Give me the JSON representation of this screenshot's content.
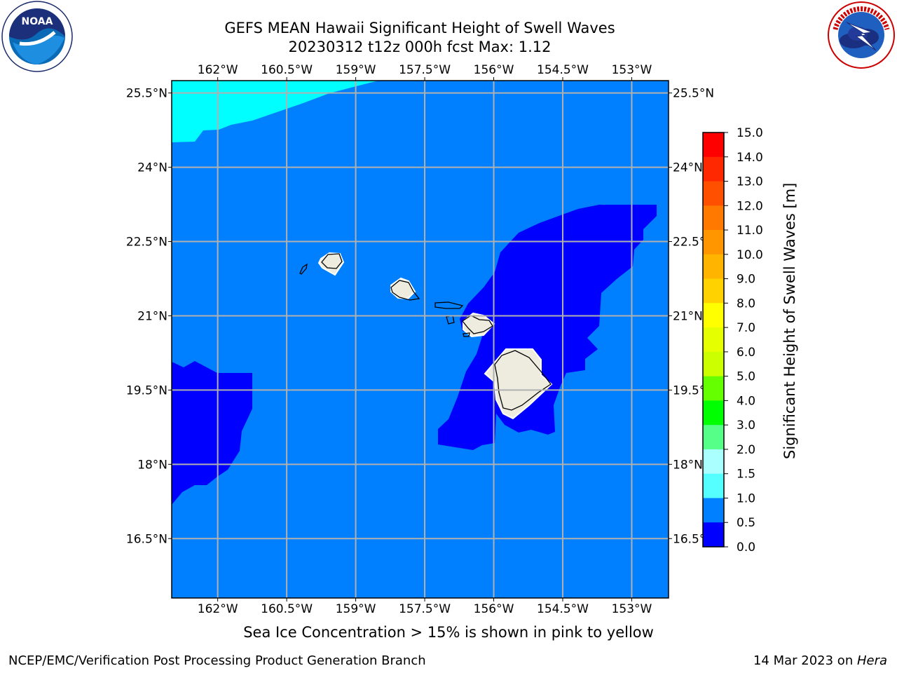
{
  "header": {
    "title_line1": "GEFS MEAN Hawaii Significant Height of Swell Waves",
    "title_line2": "20230312 t12z 000h fcst   Max: 1.12"
  },
  "logos": {
    "left_text": "NOAA",
    "left_ring_text": "NATIONAL OCEANIC AND ATMOSPHERIC ADMINISTRATION · U.S. DEPARTMENT OF COMMERCE",
    "right_ring_text": "NATIONAL WEATHER SERVICE"
  },
  "map": {
    "lon_ticks": [
      "162°W",
      "160.5°W",
      "159°W",
      "157.5°W",
      "156°W",
      "154.5°W",
      "153°W"
    ],
    "lat_ticks": [
      "25.5°N",
      "24°N",
      "22.5°N",
      "21°N",
      "19.5°N",
      "18°N",
      "16.5°N"
    ],
    "lon_range": [
      -163,
      -152.2
    ],
    "lat_range": [
      15.3,
      25.75
    ],
    "colors": {
      "ocean_main": "#0080ff",
      "low_swell": "#0000ff",
      "high_swell": "#00ffff",
      "land": "#eeecdf",
      "grid": "#b0b0b0"
    }
  },
  "colorbar": {
    "label": "Significant Height of Swell Waves [m]",
    "ticks": [
      "15.0",
      "14.0",
      "13.0",
      "12.0",
      "11.0",
      "10.0",
      "9.0",
      "8.0",
      "7.0",
      "6.0",
      "5.0",
      "4.0",
      "3.0",
      "2.0",
      "1.5",
      "1.0",
      "0.5",
      "0.0"
    ],
    "colors_top_to_bottom": [
      "#ff0000",
      "#ff2800",
      "#ff5000",
      "#ff7800",
      "#ff9600",
      "#ffb400",
      "#ffd200",
      "#ffff00",
      "#e6ff00",
      "#ccff00",
      "#99ff00",
      "#66ff00",
      "#00ff00",
      "#55ff88",
      "#aaffff",
      "#55ffff",
      "#00ffff",
      "#0080ff",
      "#0000ff"
    ]
  },
  "caption": "Sea Ice Concentration > 15% is shown in pink to yellow",
  "footer": {
    "left": "NCEP/EMC/Verification Post Processing Product Generation Branch",
    "right_prefix": "14 Mar 2023 on ",
    "right_host": "Hera"
  }
}
